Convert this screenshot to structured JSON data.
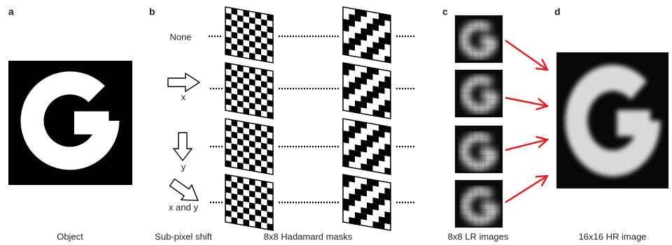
{
  "panel_labels": [
    "a",
    "b",
    "c",
    "d"
  ],
  "shifts": [
    "None",
    "x",
    "y",
    "x and y"
  ],
  "captions": [
    "Object",
    "Sub-pixel shift",
    "8x8 Hadamard masks",
    "8x8 LR images",
    "16x16 HR image"
  ]
}
